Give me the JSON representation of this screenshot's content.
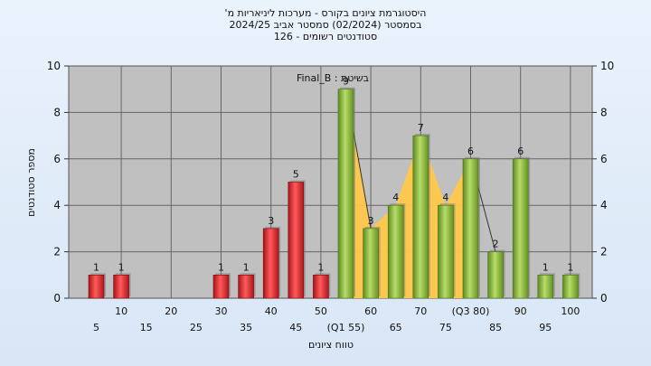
{
  "header": {
    "line1": "היסטוגרמת ציונים בקורס - מערכות ליניאריות מ'",
    "line2": "בסמסטר  (02/2024)  סמסטר אביב 2024/25",
    "line3": "סטודנטים רשומים - 126"
  },
  "chart_data": {
    "type": "bar",
    "annotation": "בשיטת : Final_B",
    "xlabel": "טווח ציונים",
    "ylabel": "מספר סטודנטים",
    "ylim": [
      0,
      10
    ],
    "yticks": [
      0,
      2,
      4,
      6,
      8,
      10
    ],
    "grid": true,
    "x": [
      5,
      10,
      15,
      20,
      25,
      30,
      35,
      40,
      45,
      50,
      55,
      60,
      65,
      70,
      75,
      80,
      85,
      90,
      95,
      100
    ],
    "values": [
      1,
      1,
      0,
      0,
      0,
      1,
      1,
      3,
      5,
      1,
      9,
      3,
      4,
      7,
      4,
      6,
      2,
      6,
      1,
      1
    ],
    "tick_labels": [
      "5",
      "10",
      "15",
      "20",
      "25",
      "30",
      "35",
      "40",
      "45",
      "50",
      "(Q1 55)",
      "60",
      "65",
      "70",
      "75",
      "(Q3 80)",
      "85",
      "90",
      "95",
      "100"
    ],
    "fail_threshold": 55,
    "colors": {
      "fail": "#e8242c",
      "pass": "#8fbf3c",
      "quartile_fill": "#ffc84a",
      "plot_bg": "#c0c0c0"
    }
  }
}
